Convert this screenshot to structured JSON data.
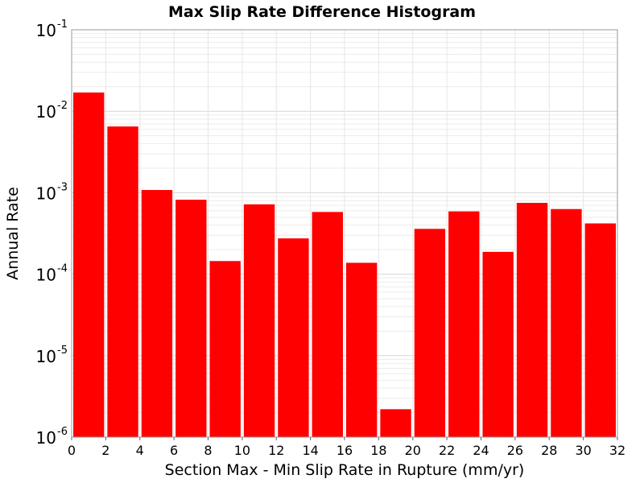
{
  "chart_data": {
    "type": "bar",
    "title": "Max Slip Rate Difference Histogram",
    "xlabel": "Section Max - Min Slip Rate in Rupture (mm/yr)",
    "ylabel": "Annual Rate",
    "y_scale": "log",
    "xlim": [
      0,
      32
    ],
    "ylim": [
      1e-06,
      0.1
    ],
    "bin_width": 2,
    "x": [
      1,
      3,
      5,
      7,
      9,
      11,
      13,
      15,
      17,
      19,
      21,
      23,
      25,
      27,
      29,
      31
    ],
    "values": [
      0.017,
      0.0065,
      0.00108,
      0.00082,
      0.000145,
      0.00072,
      0.000275,
      0.00058,
      0.000138,
      2.2e-06,
      0.00036,
      0.00059,
      0.000188,
      0.00075,
      0.00063,
      0.00042
    ],
    "bar_color": "#ff0000",
    "grid": true,
    "x_ticks": [
      "0",
      "2",
      "4",
      "6",
      "8",
      "10",
      "12",
      "14",
      "16",
      "18",
      "20",
      "22",
      "24",
      "26",
      "28",
      "30",
      "32"
    ],
    "y_ticks": [
      {
        "base": "10",
        "exp": "-6"
      },
      {
        "base": "10",
        "exp": "-5"
      },
      {
        "base": "10",
        "exp": "-4"
      },
      {
        "base": "10",
        "exp": "-3"
      },
      {
        "base": "10",
        "exp": "-2"
      },
      {
        "base": "10",
        "exp": "-1"
      }
    ]
  }
}
